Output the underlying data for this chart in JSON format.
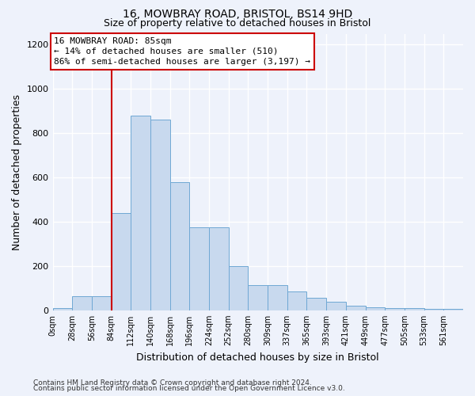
{
  "title1": "16, MOWBRAY ROAD, BRISTOL, BS14 9HD",
  "title2": "Size of property relative to detached houses in Bristol",
  "xlabel": "Distribution of detached houses by size in Bristol",
  "ylabel": "Number of detached properties",
  "bar_labels": [
    "0sqm",
    "28sqm",
    "56sqm",
    "84sqm",
    "112sqm",
    "140sqm",
    "168sqm",
    "196sqm",
    "224sqm",
    "252sqm",
    "280sqm",
    "309sqm",
    "337sqm",
    "365sqm",
    "393sqm",
    "421sqm",
    "449sqm",
    "477sqm",
    "505sqm",
    "533sqm",
    "561sqm"
  ],
  "bar_heights": [
    10,
    65,
    65,
    440,
    880,
    860,
    580,
    375,
    375,
    200,
    115,
    115,
    85,
    55,
    40,
    20,
    15,
    10,
    10,
    5,
    5
  ],
  "bar_color": "#c8d9ee",
  "bar_edge_color": "#6fa8d4",
  "background_color": "#eef2fb",
  "grid_color": "#ffffff",
  "annotation_text": "16 MOWBRAY ROAD: 85sqm\n← 14% of detached houses are smaller (510)\n86% of semi-detached houses are larger (3,197) →",
  "annotation_box_color": "#ffffff",
  "annotation_box_edge": "#cc0000",
  "vline_color": "#cc0000",
  "ylim": [
    0,
    1250
  ],
  "yticks": [
    0,
    200,
    400,
    600,
    800,
    1000,
    1200
  ],
  "footer1": "Contains HM Land Registry data © Crown copyright and database right 2024.",
  "footer2": "Contains public sector information licensed under the Open Government Licence v3.0."
}
